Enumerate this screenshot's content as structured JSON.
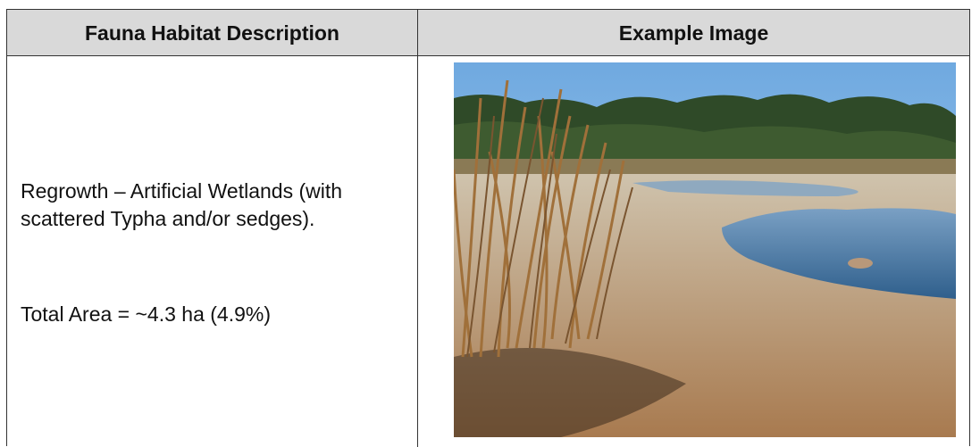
{
  "table": {
    "header": [
      "Fauna Habitat Description",
      "Example Image"
    ],
    "rows": [
      {
        "description": "Regrowth – Artificial Wetlands (with scattered Typha and/or sedges).",
        "total_area": "Total Area = ~4.3 ha (4.9%)"
      }
    ]
  }
}
